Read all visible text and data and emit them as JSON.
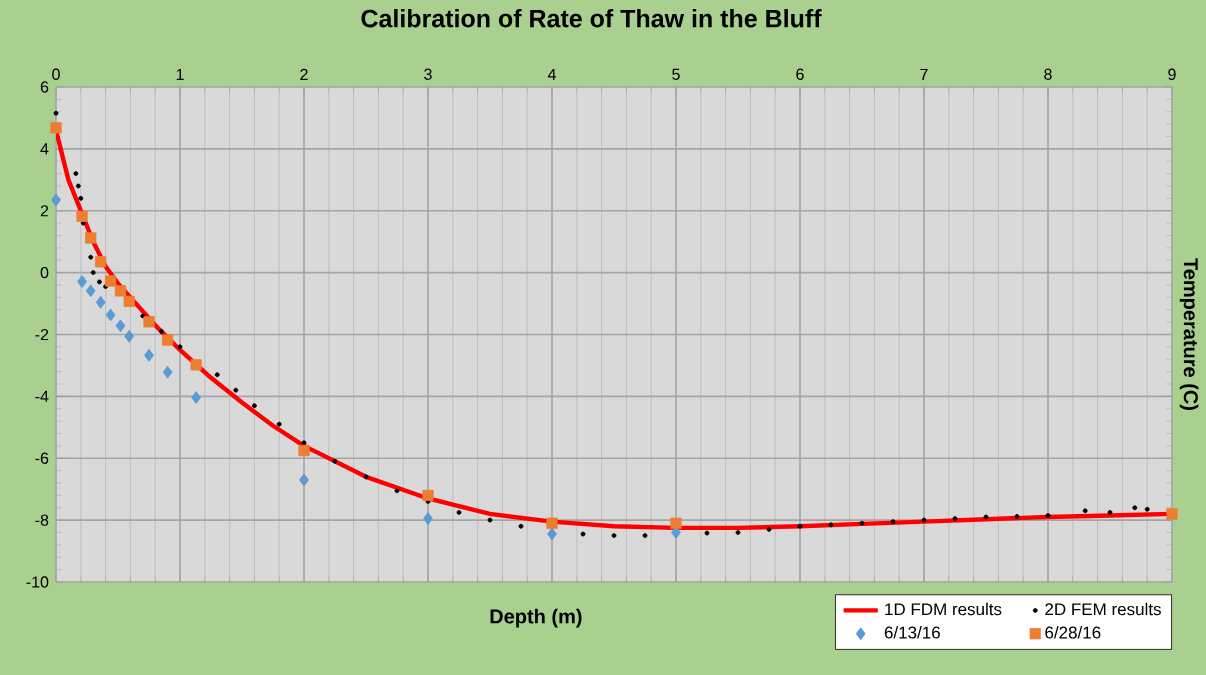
{
  "chart_data": {
    "type": "scatter",
    "title": "Calibration of Rate of Thaw in the Bluff",
    "xlabel": "Depth (m)",
    "ylabel": "Temperature (C)",
    "xlim": [
      0,
      9
    ],
    "ylim": [
      -10,
      6
    ],
    "xticks": [
      0,
      1,
      2,
      3,
      4,
      5,
      6,
      7,
      8,
      9
    ],
    "yticks": [
      -10,
      -8,
      -6,
      -4,
      -2,
      0,
      2,
      4,
      6
    ],
    "grid": true,
    "legend": "bottom right",
    "series": [
      {
        "name": "1D FDM results",
        "type": "line",
        "color": "#ff0000",
        "x": [
          0,
          0.1,
          0.2,
          0.3,
          0.4,
          0.5,
          0.6,
          0.8,
          1,
          1.25,
          1.5,
          1.75,
          2,
          2.5,
          3,
          3.5,
          4,
          4.5,
          5,
          5.5,
          6,
          6.5,
          7,
          7.5,
          8,
          8.5,
          9
        ],
        "values": [
          4.6,
          3.0,
          2.0,
          1.0,
          0.2,
          -0.35,
          -0.8,
          -1.7,
          -2.5,
          -3.4,
          -4.2,
          -4.95,
          -5.6,
          -6.6,
          -7.3,
          -7.8,
          -8.05,
          -8.2,
          -8.25,
          -8.25,
          -8.2,
          -8.12,
          -8.05,
          -7.97,
          -7.9,
          -7.85,
          -7.8
        ]
      },
      {
        "name": "2D FEM results",
        "marker": "circle",
        "color": "#000000",
        "x": [
          0,
          0.16,
          0.18,
          0.2,
          0.22,
          0.28,
          0.3,
          0.35,
          0.4,
          0.7,
          0.85,
          1,
          1.3,
          1.45,
          1.6,
          1.8,
          2,
          2.25,
          2.5,
          2.75,
          3,
          3.25,
          3.5,
          3.75,
          4.25,
          4.5,
          4.75,
          5.25,
          5.5,
          5.75,
          6,
          6.25,
          6.5,
          6.75,
          7,
          7.25,
          7.5,
          7.75,
          8,
          8.3,
          8.5,
          8.7,
          8.8
        ],
        "values": [
          5.15,
          3.2,
          2.8,
          2.4,
          1.6,
          0.5,
          0.0,
          -0.3,
          -0.45,
          -1.4,
          -1.9,
          -2.4,
          -3.3,
          -3.8,
          -4.3,
          -4.9,
          -5.5,
          -6.1,
          -6.6,
          -7.05,
          -7.4,
          -7.75,
          -8.0,
          -8.2,
          -8.45,
          -8.5,
          -8.5,
          -8.42,
          -8.4,
          -8.3,
          -8.2,
          -8.15,
          -8.1,
          -8.05,
          -8.0,
          -7.95,
          -7.9,
          -7.88,
          -7.85,
          -7.7,
          -7.75,
          -7.6,
          -7.65
        ]
      },
      {
        "name": "6/13/16",
        "marker": "diamond",
        "color": "#5b9bd5",
        "x": [
          0,
          0.21,
          0.28,
          0.36,
          0.44,
          0.52,
          0.59,
          0.75,
          0.9,
          1.13,
          2,
          3,
          4,
          5
        ],
        "values": [
          2.35,
          -0.29,
          -0.59,
          -0.96,
          -1.37,
          -1.72,
          -2.06,
          -2.67,
          -3.22,
          -4.04,
          -6.7,
          -7.95,
          -8.45,
          -8.4
        ]
      },
      {
        "name": "6/28/16",
        "marker": "square",
        "color": "#ed7d31",
        "x": [
          0,
          0.21,
          0.28,
          0.36,
          0.44,
          0.52,
          0.59,
          0.75,
          0.9,
          1.13,
          2,
          3,
          4,
          5,
          9
        ],
        "values": [
          4.68,
          1.82,
          1.12,
          0.35,
          -0.27,
          -0.59,
          -0.93,
          -1.59,
          -2.18,
          -2.98,
          -5.75,
          -7.2,
          -8.1,
          -8.1,
          -7.8
        ]
      }
    ]
  }
}
